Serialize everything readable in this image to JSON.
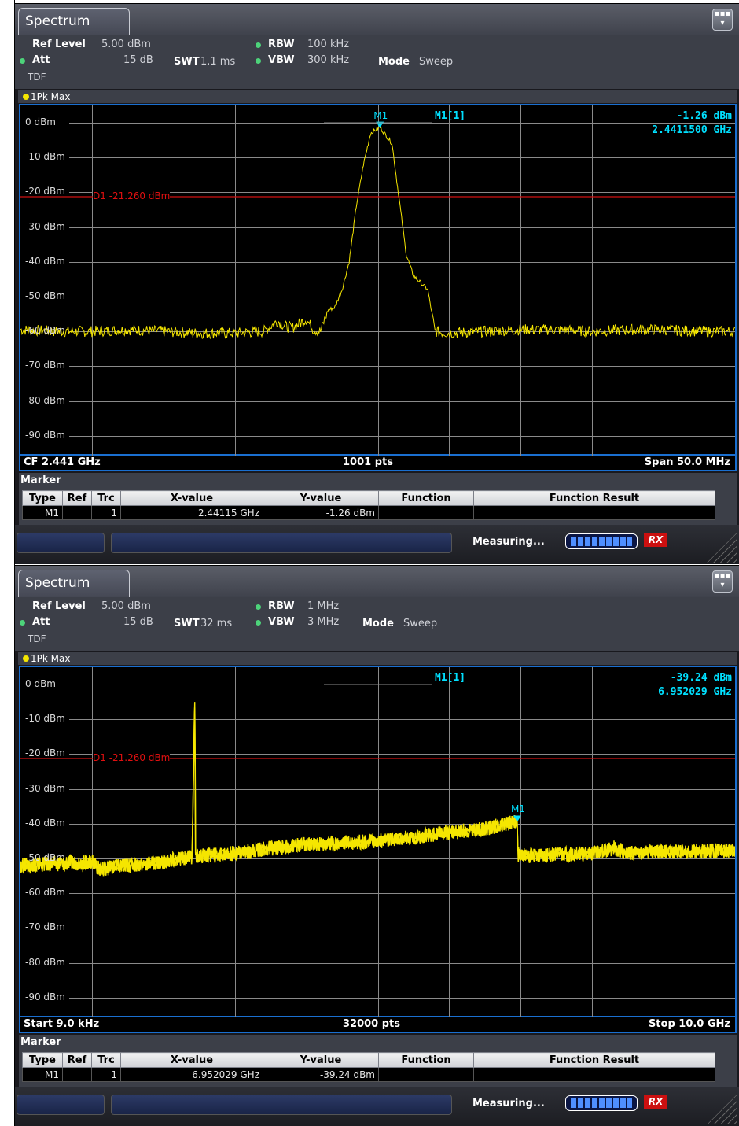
{
  "panels": [
    {
      "tab_title": "Spectrum",
      "settings": {
        "ref_level_label": "Ref Level",
        "ref_level": "5.00 dBm",
        "att_label": "Att",
        "att": "15 dB",
        "swt_label": "SWT",
        "swt": "1.1 ms",
        "rbw_label": "RBW",
        "rbw": "100 kHz",
        "vbw_label": "VBW",
        "vbw": "300 kHz",
        "mode_label": "Mode",
        "mode": "Sweep",
        "tdf": "TDF"
      },
      "trace_label": "1Pk Max",
      "y_ticks": [
        "0 dBm",
        "-10 dBm",
        "-20 dBm",
        "-30 dBm",
        "-40 dBm",
        "-50 dBm",
        "-60 dBm",
        "-70 dBm",
        "-80 dBm",
        "-90 dBm"
      ],
      "d1_label": "D1  -21.260 dBm",
      "marker_readout": {
        "name": "M1[1]",
        "level": "-1.26 dBm",
        "freq": "2.4411500 GHz"
      },
      "marker_label": "M1",
      "footer": {
        "left": "CF 2.441 GHz",
        "center": "1001 pts",
        "right": "Span 50.0 MHz"
      },
      "marker_table": {
        "title": "Marker",
        "headers": [
          "Type",
          "Ref",
          "Trc",
          "X-value",
          "Y-value",
          "Function",
          "Function Result"
        ],
        "row": [
          "M1",
          "",
          "1",
          "2.44115 GHz",
          "-1.26 dBm",
          "",
          ""
        ]
      },
      "status": {
        "measuring": "Measuring...",
        "rx_badge": "RX"
      },
      "chart_data": {
        "type": "line",
        "x_range": [
          2.416,
          2.466
        ],
        "x_unit": "GHz",
        "ylim": [
          -100,
          5
        ],
        "ref_line": -21.26,
        "series": [
          {
            "color": "#f5e600",
            "x": [
              2.416,
              2.4185,
              2.421,
              2.4235,
              2.426,
              2.4285,
              2.431,
              2.433,
              2.434,
              2.4345,
              2.435,
              2.436,
              2.4365,
              2.437,
              2.4375,
              2.438,
              2.4385,
              2.439,
              2.4395,
              2.44,
              2.4405,
              2.44115,
              2.442,
              2.4425,
              2.443,
              2.4435,
              2.444,
              2.4445,
              2.445,
              2.446,
              2.4485,
              2.451,
              2.4535,
              2.456,
              2.4585,
              2.461,
              2.4635,
              2.466
            ],
            "y": [
              -59.5,
              -60,
              -60,
              -59.5,
              -60,
              -60.5,
              -60.5,
              -60,
              -57,
              -58.5,
              -59,
              -56.5,
              -59.5,
              -60,
              -54,
              -53,
              -48,
              -40,
              -24,
              -12,
              -3,
              -1.26,
              -6,
              -22,
              -38,
              -44,
              -46,
              -48,
              -60,
              -60.5,
              -60,
              -59.5,
              -59.5,
              -60,
              -59.5,
              -59.5,
              -60,
              -60
            ]
          }
        ]
      }
    },
    {
      "tab_title": "Spectrum",
      "settings": {
        "ref_level_label": "Ref Level",
        "ref_level": "5.00 dBm",
        "att_label": "Att",
        "att": "15 dB",
        "swt_label": "SWT",
        "swt": "32 ms",
        "rbw_label": "RBW",
        "rbw": "1 MHz",
        "vbw_label": "VBW",
        "vbw": "3 MHz",
        "mode_label": "Mode",
        "mode": "Sweep",
        "tdf": "TDF"
      },
      "trace_label": "1Pk Max",
      "y_ticks": [
        "0 dBm",
        "-10 dBm",
        "-20 dBm",
        "-30 dBm",
        "-40 dBm",
        "-50 dBm",
        "-60 dBm",
        "-70 dBm",
        "-80 dBm",
        "-90 dBm"
      ],
      "d1_label": "D1  -21.260 dBm",
      "marker_readout": {
        "name": "M1[1]",
        "level": "-39.24 dBm",
        "freq": "6.952029 GHz"
      },
      "marker_label": "M1",
      "footer": {
        "left": "Start 9.0 kHz",
        "center": "32000 pts",
        "right": "Stop 10.0 GHz"
      },
      "marker_table": {
        "title": "Marker",
        "headers": [
          "Type",
          "Ref",
          "Trc",
          "X-value",
          "Y-value",
          "Function",
          "Function Result"
        ],
        "row": [
          "M1",
          "",
          "1",
          "6.952029 GHz",
          "-39.24 dBm",
          "",
          ""
        ]
      },
      "status": {
        "measuring": "Measuring...",
        "rx_badge": "RX"
      },
      "chart_data": {
        "type": "line",
        "x_range": [
          9e-06,
          10.0
        ],
        "x_unit": "GHz",
        "ylim": [
          -100,
          5
        ],
        "ref_line": -21.26,
        "series": [
          {
            "color": "#f5e600",
            "x": [
              9e-06,
              0.5,
              1.0,
              1.1,
              1.5,
              2.0,
              2.4,
              2.441,
              2.45,
              3.0,
              3.5,
              4.0,
              4.5,
              5.0,
              5.5,
              6.0,
              6.5,
              6.95,
              6.96,
              7.5,
              8.0,
              8.3,
              8.5,
              9.0,
              9.5,
              10.0
            ],
            "y": [
              -52,
              -51.5,
              -51,
              -53,
              -52,
              -51,
              -49.5,
              -3,
              -49.5,
              -48.5,
              -47,
              -46,
              -45.5,
              -45,
              -44,
              -42.5,
              -41.5,
              -39.24,
              -49,
              -49,
              -48.5,
              -47,
              -48.5,
              -48,
              -48,
              -47.5
            ]
          }
        ]
      }
    }
  ]
}
